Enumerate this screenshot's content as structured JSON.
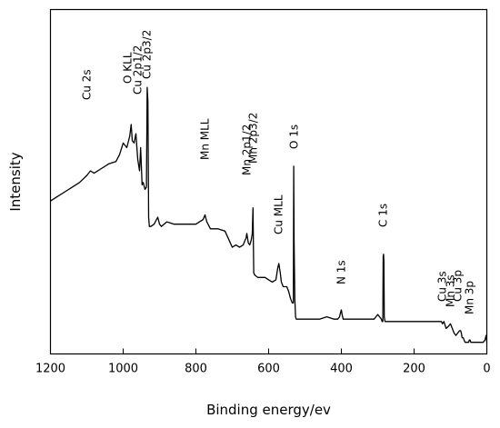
{
  "chart_data": {
    "type": "line",
    "title": "",
    "xlabel": "Binding energy/ev",
    "ylabel": "Intensity",
    "xlim": [
      1200,
      0
    ],
    "x_reversed": true,
    "xticks": [
      1200,
      1000,
      800,
      600,
      400,
      200,
      0
    ],
    "y_tick_labels": false,
    "grid": false,
    "legend": "none",
    "line_color": "#000000",
    "series": [
      {
        "x": [
          1200,
          1180,
          1160,
          1140,
          1120,
          1100,
          1090,
          1080,
          1060,
          1040,
          1020,
          1010,
          1000,
          990,
          982,
          978,
          975,
          970,
          965,
          960,
          955,
          952,
          948,
          945,
          940,
          936,
          934,
          932,
          930,
          928,
          924,
          915,
          905,
          900,
          895,
          880,
          860,
          840,
          820,
          800,
          790,
          780,
          775,
          770,
          760,
          740,
          720,
          700,
          690,
          680,
          670,
          665,
          662,
          660,
          656,
          652,
          648,
          645,
          643,
          641,
          638,
          630,
          620,
          610,
          600,
          590,
          580,
          575,
          572,
          568,
          565,
          560,
          555,
          550,
          545,
          540,
          535,
          532,
          531,
          530,
          528,
          526,
          524,
          520,
          510,
          500,
          480,
          460,
          440,
          420,
          410,
          405,
          402,
          400,
          398,
          395,
          390,
          380,
          360,
          340,
          320,
          310,
          305,
          300,
          295,
          290,
          288,
          286,
          285,
          284,
          283,
          282,
          280,
          270,
          260,
          240,
          220,
          200,
          180,
          160,
          140,
          125,
          122,
          118,
          112,
          105,
          100,
          95,
          90,
          85,
          80,
          75,
          72,
          70,
          68,
          65,
          60,
          55,
          50,
          48,
          46,
          44,
          40,
          30,
          20,
          10,
          5,
          2,
          0
        ],
        "y": [
          47,
          49,
          51,
          53,
          55,
          58,
          60,
          59,
          61,
          63,
          64,
          67,
          72,
          70,
          75,
          80,
          73,
          72,
          76,
          65,
          60,
          70,
          54,
          55,
          52,
          53,
          96,
          90,
          40,
          36,
          36,
          37,
          40,
          37,
          36,
          38,
          37,
          37,
          37,
          37,
          38,
          39,
          41,
          38,
          35,
          35,
          34,
          27,
          28,
          27,
          28,
          30,
          31,
          33,
          29,
          28,
          30,
          33,
          44,
          16,
          15,
          14,
          14,
          14,
          13,
          12,
          13,
          18,
          20,
          16,
          12,
          10,
          10,
          10,
          8,
          5,
          3,
          3,
          62,
          30,
          5,
          -3,
          -4,
          -4,
          -4,
          -4,
          -4,
          -4,
          -3,
          -4,
          -4,
          -3,
          -1,
          0,
          -2,
          -4,
          -4,
          -4,
          -4,
          -4,
          -4,
          -4,
          -3,
          -2,
          -3,
          -4,
          -5,
          -5,
          23,
          24,
          21,
          -3,
          -5,
          -5,
          -5,
          -5,
          -5,
          -5,
          -5,
          -5,
          -5,
          -5,
          -6,
          -5,
          -8,
          -7,
          -6,
          -8,
          -10,
          -11,
          -10,
          -9,
          -9,
          -10,
          -12,
          -12,
          -14,
          -14,
          -14,
          -13,
          -13,
          -14,
          -14,
          -14,
          -14,
          -14,
          -13,
          -11,
          -14
        ]
      }
    ],
    "annotations": [
      {
        "text": "Cu 2s",
        "x": 1100
      },
      {
        "text": "O KLL",
        "x": 988
      },
      {
        "text": "Cu 2p1/2",
        "x": 960
      },
      {
        "text": "Cu 2p3/2",
        "x": 935
      },
      {
        "text": "Mn MLL",
        "x": 775
      },
      {
        "text": "Mn 2p1/2",
        "x": 660
      },
      {
        "text": "Mn 2p3/2",
        "x": 643
      },
      {
        "text": "Cu MLL",
        "x": 572
      },
      {
        "text": "O 1s",
        "x": 530
      },
      {
        "text": "N 1s",
        "x": 400
      },
      {
        "text": "C 1s",
        "x": 285
      },
      {
        "text": "Cu 3s",
        "x": 122
      },
      {
        "text": "Mn 3s",
        "x": 100
      },
      {
        "text": "Cu 3p",
        "x": 80
      },
      {
        "text": "Mn 3p",
        "x": 47
      }
    ]
  }
}
